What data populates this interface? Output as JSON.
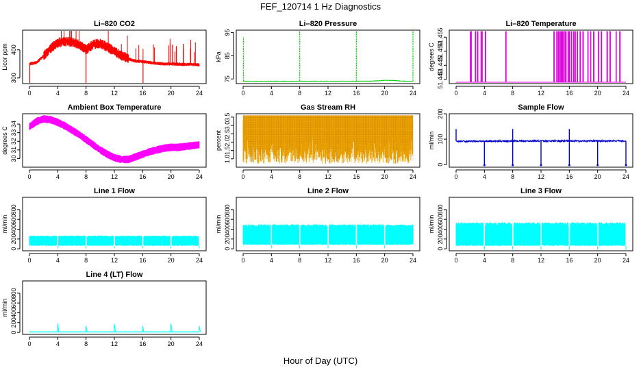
{
  "figure": {
    "title": "FEF_120714  1 Hz Diagnostics",
    "xlabel": "Hour of Day (UTC)"
  },
  "chart_data": [
    {
      "id": "co2",
      "type": "line",
      "title": "Li–820 CO2",
      "ylabel": "Licor ppm",
      "xlim": [
        0,
        24
      ],
      "xticks": [
        0,
        4,
        8,
        12,
        16,
        20,
        24
      ],
      "ylim": [
        280,
        470
      ],
      "yticks": [
        300,
        400
      ],
      "yticklabels": [
        "300",
        "400"
      ],
      "color": "#ff0000",
      "grid": false,
      "legend": "none",
      "series": [
        {
          "x": [
            0,
            1,
            2,
            3,
            4,
            5,
            6,
            7,
            8,
            9,
            10,
            11,
            12,
            13,
            14,
            15,
            16,
            17,
            18,
            19,
            20,
            21,
            22,
            23,
            24
          ],
          "y": [
            350,
            355,
            378,
            405,
            425,
            430,
            428,
            420,
            400,
            420,
            422,
            410,
            395,
            380,
            368,
            360,
            358,
            355,
            352,
            350,
            350,
            349,
            348,
            348,
            347
          ]
        }
      ],
      "spikes_x": [
        0.05,
        8.0,
        16.05
      ],
      "spike_values": [
        280,
        280,
        280
      ]
    },
    {
      "id": "pressure",
      "type": "line",
      "title": "Li–820 Pressure",
      "ylabel": "kPa",
      "xlim": [
        0,
        24
      ],
      "xticks": [
        0,
        4,
        8,
        12,
        16,
        20,
        24
      ],
      "ylim": [
        73,
        96
      ],
      "yticks": [
        75,
        85,
        95
      ],
      "yticklabels": [
        "75",
        "85",
        "95"
      ],
      "color": "#00cc00",
      "grid": false,
      "legend": "none",
      "series": [
        {
          "x": [
            0,
            2,
            4,
            6,
            8,
            10,
            12,
            14,
            16,
            18,
            19,
            20,
            21,
            22,
            23,
            24
          ],
          "y": [
            74.0,
            74.0,
            74.0,
            74.0,
            74.0,
            74.0,
            74.0,
            74.0,
            74.0,
            74.1,
            74.2,
            74.4,
            74.4,
            74.2,
            74.0,
            74.0
          ]
        }
      ],
      "spikes_x": [
        0.05,
        8.0,
        16.0,
        24.0
      ],
      "spike_values": [
        93,
        96,
        96,
        96
      ]
    },
    {
      "id": "li_temp",
      "type": "line",
      "title": "Li–820 Temperature",
      "ylabel": "degrees C",
      "xlim": [
        0,
        24
      ],
      "xticks": [
        0,
        4,
        8,
        12,
        16,
        20,
        24
      ],
      "ylim": [
        51.4385,
        51.4575
      ],
      "yticks": [
        51.44,
        51.445,
        51.45,
        51.455
      ],
      "yticklabels": [
        "51.440",
        "51.445",
        "51.450",
        "51.455"
      ],
      "color": "#dd00dd",
      "grid": false,
      "legend": "none",
      "series": [
        {
          "x": [
            0,
            24
          ],
          "y": [
            51.439,
            51.439
          ]
        }
      ],
      "pulses_x": [
        2.0,
        2.1,
        2.7,
        3.0,
        3.5,
        3.6,
        4.1,
        7.0,
        13.8,
        14.2,
        14.4,
        14.6,
        14.8,
        14.9,
        15.1,
        15.3,
        15.5,
        15.8,
        16.0,
        16.3,
        16.6,
        16.8,
        17.1,
        17.5,
        17.9,
        18.6,
        19.0,
        19.4,
        20.1,
        20.5,
        21.3,
        21.7,
        22.6,
        23.1
      ],
      "pulse_value": 51.457
    },
    {
      "id": "box_temp",
      "type": "line",
      "title": "Ambient Box Temperature",
      "ylabel": "degrees C",
      "xlim": [
        0,
        24
      ],
      "xticks": [
        0,
        4,
        8,
        12,
        16,
        20,
        24
      ],
      "ylim": [
        29,
        35.2
      ],
      "yticks": [
        30,
        31,
        32,
        33,
        34
      ],
      "yticklabels": [
        "30",
        "31",
        "32",
        "33",
        "34"
      ],
      "color": "#ff00ff",
      "grid": false,
      "legend": "none",
      "series": [
        {
          "x": [
            0,
            1,
            2,
            3,
            4,
            5,
            6,
            7,
            8,
            9,
            10,
            11,
            12,
            13,
            14,
            15,
            16,
            17,
            18,
            19,
            20,
            21,
            22,
            23,
            24
          ],
          "y": [
            33.7,
            34.3,
            34.6,
            34.5,
            34.2,
            33.8,
            33.3,
            32.8,
            32.2,
            31.6,
            31.0,
            30.5,
            30.1,
            29.9,
            29.9,
            30.2,
            30.5,
            30.8,
            31.0,
            31.2,
            31.3,
            31.3,
            31.4,
            31.5,
            31.6
          ]
        }
      ]
    },
    {
      "id": "rh",
      "type": "line",
      "title": "Gas Stream RH",
      "ylabel": "percent",
      "xlim": [
        0,
        24
      ],
      "xticks": [
        0,
        4,
        8,
        12,
        16,
        20,
        24
      ],
      "ylim": [
        0.5,
        3.7
      ],
      "yticks": [
        1.0,
        1.5,
        2.0,
        2.5,
        3.0,
        3.5
      ],
      "yticklabels": [
        "1.0",
        "1.5",
        "2.0",
        "2.5",
        "3.0",
        "3.5"
      ],
      "color": "#e8a000",
      "grid": false,
      "legend": "none",
      "band": [
        0.7,
        3.6
      ]
    },
    {
      "id": "sample_flow",
      "type": "line",
      "title": "Sample Flow",
      "ylabel": "ml/min",
      "xlim": [
        0,
        24
      ],
      "xticks": [
        0,
        4,
        8,
        12,
        16,
        20,
        24
      ],
      "ylim": [
        -10,
        200
      ],
      "yticks": [
        0,
        100,
        200
      ],
      "yticklabels": [
        "0",
        "100",
        "200"
      ],
      "color": "#0000cc",
      "grid": false,
      "legend": "none",
      "series": [
        {
          "x": [
            0,
            4,
            8,
            12,
            16,
            20,
            24
          ],
          "y": [
            92,
            92,
            93,
            93,
            93,
            93,
            93
          ]
        }
      ],
      "dips_x": [
        4,
        8,
        12,
        16,
        20,
        24
      ],
      "dip_value": -2,
      "peaks_x": [
        0,
        8,
        16
      ],
      "peak_value": 140
    },
    {
      "id": "line1",
      "type": "line",
      "title": "Line 1 Flow",
      "ylabel": "ml/min",
      "xlim": [
        0,
        24
      ],
      "xticks": [
        0,
        4,
        8,
        12,
        16,
        20,
        24
      ],
      "ylim": [
        -40,
        1050
      ],
      "yticks": [
        0,
        200,
        400,
        600,
        800
      ],
      "yticklabels": [
        "0",
        "200",
        "400",
        "600",
        "800"
      ],
      "color": "#00ffff",
      "grid": false,
      "legend": "none",
      "band": [
        60,
        270
      ],
      "gaps_x": [
        4,
        8,
        12,
        16,
        20,
        24
      ]
    },
    {
      "id": "line2",
      "type": "line",
      "title": "Line 2 Flow",
      "ylabel": "ml/min",
      "xlim": [
        0,
        24
      ],
      "xticks": [
        0,
        4,
        8,
        12,
        16,
        20,
        24
      ],
      "ylim": [
        -40,
        1050
      ],
      "yticks": [
        0,
        200,
        400,
        600,
        800
      ],
      "yticklabels": [
        "0",
        "200",
        "400",
        "600",
        "800"
      ],
      "color": "#00ffff",
      "grid": false,
      "legend": "none",
      "band": [
        80,
        500
      ],
      "gaps_x": [
        4,
        8,
        12,
        16,
        20
      ]
    },
    {
      "id": "line3",
      "type": "line",
      "title": "Line 3 Flow",
      "ylabel": "ml/min",
      "xlim": [
        0,
        24
      ],
      "xticks": [
        0,
        4,
        8,
        12,
        16,
        20,
        24
      ],
      "ylim": [
        -40,
        1050
      ],
      "yticks": [
        0,
        200,
        400,
        600,
        800
      ],
      "yticklabels": [
        "0",
        "200",
        "400",
        "600",
        "800"
      ],
      "color": "#00ffff",
      "grid": false,
      "legend": "none",
      "band": [
        60,
        540
      ],
      "gaps_x": [
        4,
        8,
        12,
        16,
        20,
        24
      ]
    },
    {
      "id": "line4",
      "type": "line",
      "title": "Line 4 (LT) Flow",
      "ylabel": "ml/min",
      "xlim": [
        0,
        24
      ],
      "xticks": [
        0,
        4,
        8,
        12,
        16,
        20,
        24
      ],
      "ylim": [
        -40,
        1050
      ],
      "yticks": [
        0,
        200,
        400,
        600,
        800
      ],
      "yticklabels": [
        "0",
        "200",
        "400",
        "600",
        "800"
      ],
      "color": "#00ffff",
      "grid": false,
      "legend": "none",
      "series": [
        {
          "x": [
            0,
            24
          ],
          "y": [
            10,
            10
          ]
        }
      ],
      "peaks_x": [
        4,
        8,
        12,
        16,
        20,
        24
      ],
      "peak_values": [
        180,
        130,
        170,
        130,
        180,
        130
      ]
    }
  ]
}
